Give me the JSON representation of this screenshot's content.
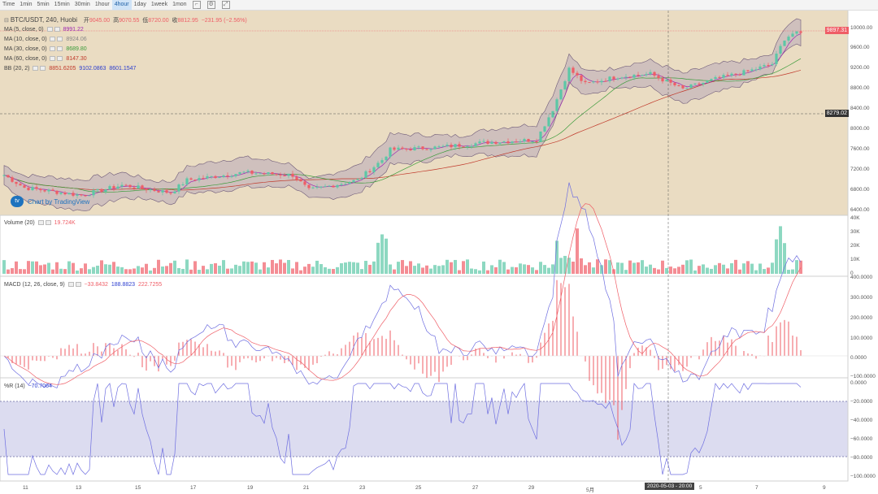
{
  "toolbar": {
    "timeframes": [
      "Time",
      "1min",
      "5min",
      "15min",
      "30min",
      "1hour",
      "4hour",
      "1day",
      "1week",
      "1mon"
    ],
    "active": "4hour"
  },
  "header": {
    "symbol": "BTC/USDT, 240, Huobi",
    "open_label": "开",
    "open": "9045.00",
    "high_label": "高",
    "high": "9070.55",
    "low_label": "低",
    "low": "8720.00",
    "close_label": "收",
    "close": "8812.95",
    "change": "−231.95 (−2.56%)"
  },
  "indicators": [
    {
      "label": "MA (5, close, 0)",
      "value": "8991.22",
      "color": "#9c27b0"
    },
    {
      "label": "MA (10, close, 0)",
      "value": "8924.06",
      "color": "#888888"
    },
    {
      "label": "MA (30, close, 0)",
      "value": "8689.80",
      "color": "#3a9b3a"
    },
    {
      "label": "MA (60, close, 0)",
      "value": "8147.30",
      "color": "#c0392b"
    },
    {
      "label": "BB (20, 2)",
      "values": [
        "8851.6205",
        "9102.0863",
        "8601.1547"
      ],
      "colors": [
        "#c0392b",
        "#2c3ecf",
        "#2c3ecf"
      ]
    }
  ],
  "branding": {
    "text": "Chart by TradingView"
  },
  "price_axis": {
    "labels": [
      "10000.00",
      "9600.00",
      "9200.00",
      "8800.00",
      "8400.00",
      "8000.00",
      "7600.00",
      "7200.00",
      "6800.00",
      "6400.00"
    ],
    "last_price": "9897.31",
    "cross_price": "8279.02"
  },
  "volume": {
    "label": "Volume (20)",
    "value": "19.724K",
    "axis": [
      "40K",
      "30K",
      "20K",
      "10K",
      "0"
    ]
  },
  "macd": {
    "label": "MACD (12, 26, close, 9)",
    "values": [
      "−33.8432",
      "188.8823",
      "222.7255"
    ],
    "axis": [
      "400.0000",
      "300.0000",
      "200.0000",
      "100.0000",
      "0.0000",
      "−100.0000"
    ]
  },
  "wr": {
    "label": "%R (14)",
    "value": "−70.7064",
    "axis": [
      "0.0000",
      "−20.0000",
      "−40.0000",
      "−60.0000",
      "−80.0000",
      "−100.0000"
    ]
  },
  "time_axis": {
    "labels": [
      "11",
      "13",
      "15",
      "17",
      "19",
      "21",
      "23",
      "25",
      "27",
      "29",
      "5月",
      "5",
      "7",
      "9"
    ],
    "crosshair": "2020-05-03 - 20:00"
  },
  "colors": {
    "up": "#5cc7a6",
    "down": "#ef5d66",
    "band": "#b8aaba",
    "bg": "#eadcc2"
  }
}
